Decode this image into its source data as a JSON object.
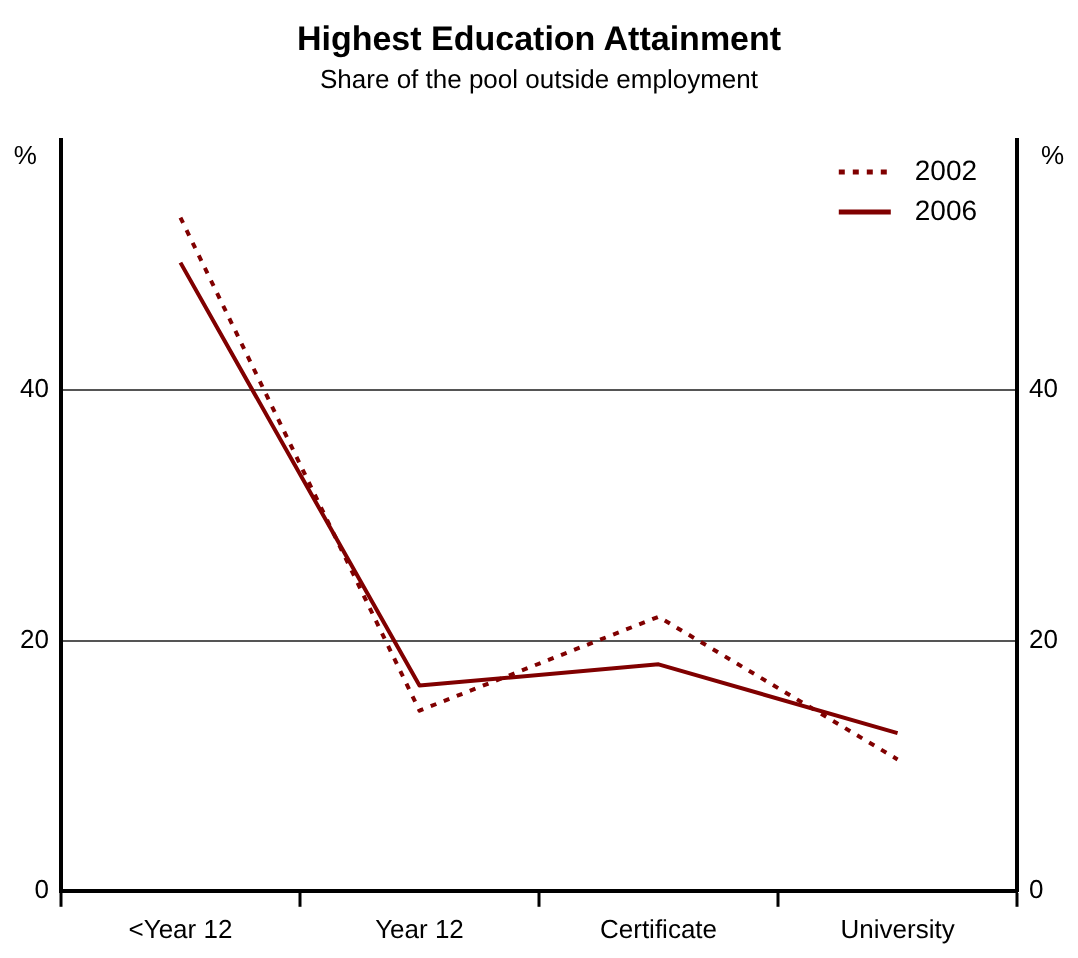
{
  "chart_data": {
    "type": "line",
    "title": "Highest Education Attainment",
    "subtitle": "Share of the pool outside employment",
    "ylabel": "%",
    "y2label": "%",
    "categories": [
      "<Year 12",
      "Year 12",
      "Certificate",
      "University"
    ],
    "series": [
      {
        "name": "2002",
        "color": "#800000",
        "line_style": "dotted",
        "values": [
          53.8,
          14.4,
          21.9,
          10.5
        ]
      },
      {
        "name": "2006",
        "color": "#800000",
        "line_style": "solid",
        "values": [
          50.2,
          16.4,
          18.1,
          12.6
        ]
      }
    ],
    "ylim": [
      0,
      60
    ],
    "yticks": [
      0,
      20,
      40
    ],
    "y2lim": [
      0,
      60
    ],
    "y2ticks": [
      0,
      20,
      40
    ],
    "grid": "y",
    "legend": "top right",
    "marker": "none"
  }
}
